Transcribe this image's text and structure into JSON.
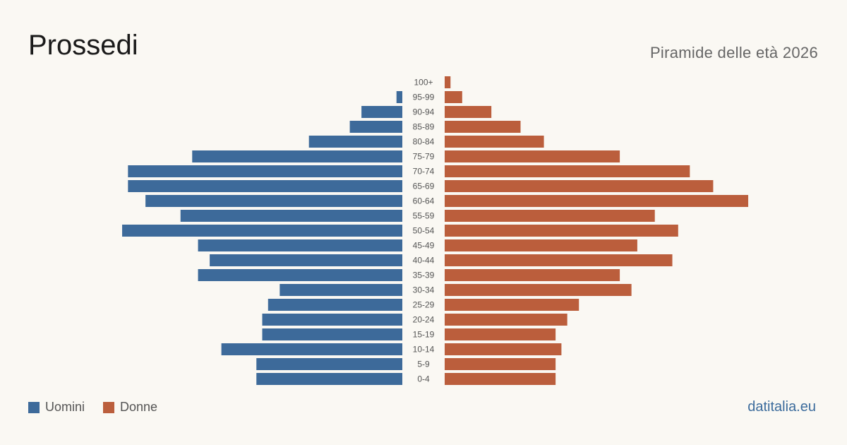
{
  "header": {
    "title": "Prossedi",
    "subtitle": "Piramide delle età 2026"
  },
  "legend": {
    "men_label": "Uomini",
    "women_label": "Donne"
  },
  "footer": {
    "source": "datitalia.eu"
  },
  "colors": {
    "men": "#3d6a9a",
    "women": "#bb5e3c",
    "age_label": "#555555"
  },
  "chart_data": {
    "type": "bar",
    "orientation": "horizontal-pyramid",
    "categories": [
      "100+",
      "95-99",
      "90-94",
      "85-89",
      "80-84",
      "75-79",
      "70-74",
      "65-69",
      "60-64",
      "55-59",
      "50-54",
      "45-49",
      "40-44",
      "35-39",
      "30-34",
      "25-29",
      "20-24",
      "15-19",
      "10-14",
      "5-9",
      "0-4"
    ],
    "series": [
      {
        "name": "Uomini",
        "values": [
          0,
          1,
          7,
          9,
          16,
          36,
          47,
          47,
          44,
          38,
          48,
          35,
          33,
          35,
          21,
          23,
          24,
          24,
          31,
          25,
          25
        ]
      },
      {
        "name": "Donne",
        "values": [
          1,
          3,
          8,
          13,
          17,
          30,
          42,
          46,
          52,
          36,
          40,
          33,
          39,
          30,
          32,
          23,
          21,
          19,
          20,
          19,
          19
        ]
      }
    ],
    "legend_position": "bottom-left",
    "grid": false
  }
}
